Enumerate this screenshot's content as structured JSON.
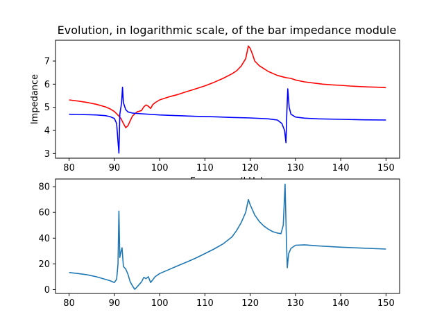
{
  "chart_data": [
    {
      "type": "line",
      "title": "Evolution, in logarithmic scale, of the bar impedance module",
      "xlabel": "Frequency (kHz)",
      "ylabel": "Impedance",
      "xlim": [
        77,
        153
      ],
      "ylim": [
        2.8,
        7.9
      ],
      "xticks": [
        80,
        90,
        100,
        110,
        120,
        130,
        140,
        150
      ],
      "yticks": [
        3,
        4,
        5,
        6,
        7
      ],
      "series": [
        {
          "color": "#ff0000",
          "points": [
            [
              80,
              5.32
            ],
            [
              82,
              5.27
            ],
            [
              84,
              5.21
            ],
            [
              86,
              5.13
            ],
            [
              88,
              5.02
            ],
            [
              89,
              4.94
            ],
            [
              90,
              4.82
            ],
            [
              91,
              4.62
            ],
            [
              91.5,
              4.5
            ],
            [
              92,
              4.3
            ],
            [
              92.5,
              4.12
            ],
            [
              93,
              4.2
            ],
            [
              93.5,
              4.42
            ],
            [
              94,
              4.62
            ],
            [
              95,
              4.8
            ],
            [
              96,
              4.86
            ],
            [
              96.5,
              5.02
            ],
            [
              97,
              5.1
            ],
            [
              97.5,
              5.05
            ],
            [
              98,
              4.95
            ],
            [
              98.5,
              5.12
            ],
            [
              99,
              5.2
            ],
            [
              100,
              5.32
            ],
            [
              102,
              5.45
            ],
            [
              104,
              5.55
            ],
            [
              106,
              5.68
            ],
            [
              108,
              5.8
            ],
            [
              110,
              5.93
            ],
            [
              112,
              6.08
            ],
            [
              114,
              6.25
            ],
            [
              116,
              6.45
            ],
            [
              117,
              6.58
            ],
            [
              118,
              6.78
            ],
            [
              119,
              7.1
            ],
            [
              119.6,
              7.65
            ],
            [
              120,
              7.55
            ],
            [
              120.5,
              7.3
            ],
            [
              121,
              7.0
            ],
            [
              122,
              6.8
            ],
            [
              124,
              6.55
            ],
            [
              126,
              6.38
            ],
            [
              127.5,
              6.3
            ],
            [
              128,
              6.28
            ],
            [
              129,
              6.25
            ],
            [
              130,
              6.18
            ],
            [
              132,
              6.1
            ],
            [
              134,
              6.05
            ],
            [
              136,
              6.0
            ],
            [
              138,
              5.97
            ],
            [
              140,
              5.95
            ],
            [
              142,
              5.92
            ],
            [
              144,
              5.9
            ],
            [
              146,
              5.88
            ],
            [
              148,
              5.87
            ],
            [
              150,
              5.85
            ]
          ]
        },
        {
          "color": "#0000ff",
          "points": [
            [
              80,
              4.7
            ],
            [
              82,
              4.69
            ],
            [
              84,
              4.68
            ],
            [
              86,
              4.67
            ],
            [
              88,
              4.64
            ],
            [
              89,
              4.6
            ],
            [
              90,
              4.52
            ],
            [
              90.5,
              4.3
            ],
            [
              91,
              3.02
            ],
            [
              91.2,
              4.7
            ],
            [
              91.6,
              5.2
            ],
            [
              91.8,
              5.87
            ],
            [
              92,
              5.2
            ],
            [
              92.5,
              4.9
            ],
            [
              93,
              4.8
            ],
            [
              94,
              4.75
            ],
            [
              96,
              4.72
            ],
            [
              100,
              4.67
            ],
            [
              104,
              4.64
            ],
            [
              108,
              4.61
            ],
            [
              112,
              4.59
            ],
            [
              116,
              4.56
            ],
            [
              120,
              4.54
            ],
            [
              124,
              4.5
            ],
            [
              126,
              4.45
            ],
            [
              127,
              4.3
            ],
            [
              127.6,
              4.0
            ],
            [
              127.9,
              3.47
            ],
            [
              128.1,
              4.8
            ],
            [
              128.3,
              5.8
            ],
            [
              128.6,
              5.0
            ],
            [
              129,
              4.7
            ],
            [
              130,
              4.58
            ],
            [
              132,
              4.53
            ],
            [
              135,
              4.5
            ],
            [
              140,
              4.48
            ],
            [
              145,
              4.46
            ],
            [
              150,
              4.45
            ]
          ]
        }
      ]
    },
    {
      "type": "line",
      "xlim": [
        77,
        153
      ],
      "ylim": [
        -3,
        86
      ],
      "xticks": [
        80,
        90,
        100,
        110,
        120,
        130,
        140,
        150
      ],
      "yticks": [
        0,
        20,
        40,
        60,
        80
      ],
      "series": [
        {
          "color": "#1f77b4",
          "points": [
            [
              80,
              13.3
            ],
            [
              82,
              12.5
            ],
            [
              84,
              11.5
            ],
            [
              86,
              10.0
            ],
            [
              88,
              8.0
            ],
            [
              89,
              7.0
            ],
            [
              90,
              5.5
            ],
            [
              90.5,
              8.0
            ],
            [
              90.8,
              20.0
            ],
            [
              91.0,
              61.0
            ],
            [
              91.2,
              25.0
            ],
            [
              91.5,
              30.0
            ],
            [
              91.7,
              32.5
            ],
            [
              92.0,
              18.0
            ],
            [
              92.5,
              16.0
            ],
            [
              93.0,
              12.0
            ],
            [
              93.5,
              6.0
            ],
            [
              94.0,
              3.0
            ],
            [
              94.5,
              0.2
            ],
            [
              95.0,
              2.0
            ],
            [
              96.0,
              6.0
            ],
            [
              96.5,
              9.5
            ],
            [
              97.0,
              8.5
            ],
            [
              97.5,
              10.0
            ],
            [
              98.0,
              5.5
            ],
            [
              99.0,
              10.0
            ],
            [
              100,
              12.5
            ],
            [
              102,
              15.5
            ],
            [
              104,
              18.5
            ],
            [
              106,
              21.5
            ],
            [
              108,
              24.5
            ],
            [
              110,
              28.0
            ],
            [
              112,
              31.5
            ],
            [
              114,
              35.5
            ],
            [
              116,
              41.0
            ],
            [
              117,
              46.0
            ],
            [
              118,
              52.0
            ],
            [
              119,
              60.0
            ],
            [
              119.6,
              70.0
            ],
            [
              120,
              66.0
            ],
            [
              121,
              58.0
            ],
            [
              122,
              53.0
            ],
            [
              123,
              49.5
            ],
            [
              124,
              47.0
            ],
            [
              125,
              45.0
            ],
            [
              126,
              44.0
            ],
            [
              126.8,
              43.5
            ],
            [
              127.3,
              50.0
            ],
            [
              127.7,
              82.0
            ],
            [
              128.0,
              40.0
            ],
            [
              128.2,
              17.0
            ],
            [
              128.5,
              28.0
            ],
            [
              129,
              32.0
            ],
            [
              130,
              34.5
            ],
            [
              132,
              34.8
            ],
            [
              135,
              34.0
            ],
            [
              140,
              33.0
            ],
            [
              145,
              32.2
            ],
            [
              150,
              31.5
            ]
          ]
        }
      ]
    }
  ]
}
